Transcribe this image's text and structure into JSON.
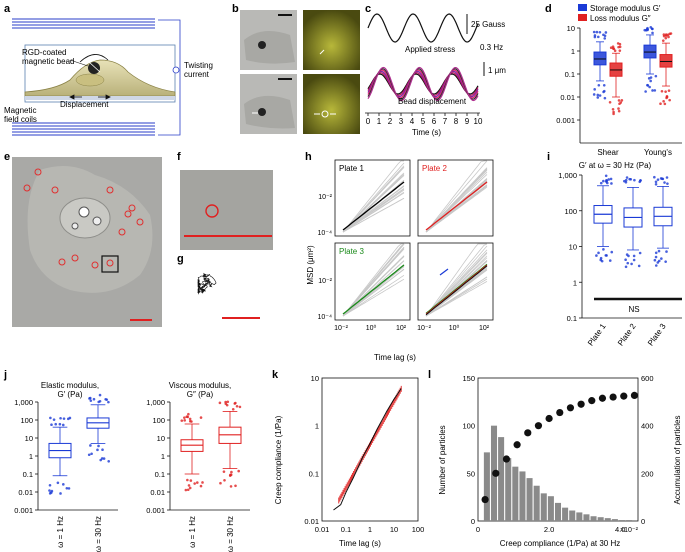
{
  "panel_letters": [
    "a",
    "b",
    "c",
    "d",
    "e",
    "f",
    "g",
    "h",
    "i",
    "j",
    "k",
    "l"
  ],
  "panel_a": {
    "bead_label_1": "RGD-coated",
    "bead_label_2": "magnetic bead",
    "twisting_label_1": "Twisting",
    "twisting_label_2": "current",
    "displacement": "Displacement",
    "coils_label_1": "Magnetic",
    "coils_label_2": "field coils"
  },
  "panel_c": {
    "scale_gauss": "25 Gauss",
    "freq": "0.3 Hz",
    "applied_stress": "Applied stress",
    "scale_um": "1 μm",
    "bead_displacement": "Bead displacement",
    "xlabel": "Time (s)",
    "ticks": [
      "0",
      "1",
      "2",
      "3",
      "4",
      "5",
      "6",
      "7",
      "8",
      "9",
      "10"
    ]
  },
  "panel_e": {
    "colors": {
      "marker": "#e03030"
    }
  },
  "panel_h": {
    "ylabel": "MSD (μm²)",
    "xlabel": "Time lag (s)",
    "subplots": [
      {
        "title": "Plate 1",
        "color": "#000000"
      },
      {
        "title": "Plate 2",
        "color": "#e02020"
      },
      {
        "title": "Plate 3",
        "color": "#1a8a1a"
      },
      {
        "title": "",
        "color": "#6b6b2a"
      }
    ],
    "yticks": [
      "10⁻⁴",
      "10⁻²"
    ],
    "xticks": [
      "10⁻²",
      "10⁰",
      "10²"
    ]
  },
  "chart_data": [
    {
      "id": "d",
      "type": "box",
      "legend": [
        "Storage modulus G′",
        "Loss modulus G″"
      ],
      "categories": [
        "Shear",
        "Young's"
      ],
      "yscale": "log",
      "ylim": [
        0.0001,
        10
      ],
      "yticks": [
        "10",
        "1",
        "0.1",
        "0.01",
        "0.001"
      ],
      "colors": {
        "storage": "#1a3ad6",
        "loss": "#e02020"
      },
      "series": [
        {
          "name": "Storage modulus G′",
          "boxes": [
            {
              "median": 0.45,
              "q1": 0.25,
              "q3": 0.9,
              "wlo": 0.05,
              "whi": 2.5
            },
            {
              "median": 0.9,
              "q1": 0.5,
              "q3": 1.8,
              "wlo": 0.1,
              "whi": 5
            }
          ]
        },
        {
          "name": "Loss modulus G″",
          "boxes": [
            {
              "median": 0.15,
              "q1": 0.08,
              "q3": 0.3,
              "wlo": 0.01,
              "whi": 0.8
            },
            {
              "median": 0.35,
              "q1": 0.2,
              "q3": 0.7,
              "wlo": 0.03,
              "whi": 2.2
            }
          ]
        }
      ]
    },
    {
      "id": "i",
      "type": "box",
      "title": "G′ at ω = 30 Hz (Pa)",
      "categories": [
        "Plate 1",
        "Plate 2",
        "Plate 3"
      ],
      "yscale": "log",
      "ylim": [
        0.1,
        1000
      ],
      "yticks": [
        "1,000",
        "100",
        "10",
        "1",
        "0.1"
      ],
      "annotation": "NS",
      "series": [
        {
          "name": "G′",
          "boxes": [
            {
              "median": 80,
              "q1": 45,
              "q3": 140,
              "wlo": 10,
              "whi": 500
            },
            {
              "median": 65,
              "q1": 35,
              "q3": 120,
              "wlo": 8,
              "whi": 450
            },
            {
              "median": 70,
              "q1": 38,
              "q3": 125,
              "wlo": 9,
              "whi": 480
            }
          ]
        }
      ]
    },
    {
      "id": "j-elastic",
      "type": "box",
      "title_1": "Elastic modulus,",
      "title_2": "G′ (Pa)",
      "categories": [
        "ω = 1 Hz",
        "ω = 30 Hz"
      ],
      "yscale": "log",
      "ylim": [
        0.001,
        1000
      ],
      "yticks": [
        "1,000",
        "100",
        "10",
        "1",
        "0.1",
        "0.01",
        "0.001"
      ],
      "series": [
        {
          "name": "G′",
          "boxes": [
            {
              "median": 2,
              "q1": 0.8,
              "q3": 5,
              "wlo": 0.08,
              "whi": 40
            },
            {
              "median": 70,
              "q1": 35,
              "q3": 130,
              "wlo": 5,
              "whi": 700
            }
          ]
        }
      ]
    },
    {
      "id": "j-viscous",
      "type": "box",
      "title_1": "Viscous modulus,",
      "title_2": "G″ (Pa)",
      "categories": [
        "ω = 1 Hz",
        "ω = 30 Hz"
      ],
      "yscale": "log",
      "ylim": [
        0.001,
        1000
      ],
      "yticks": [
        "1,000",
        "100",
        "10",
        "1",
        "0.1",
        "0.01",
        "0.001"
      ],
      "series": [
        {
          "name": "G″",
          "boxes": [
            {
              "median": 4,
              "q1": 1.8,
              "q3": 8,
              "wlo": 0.1,
              "whi": 60
            },
            {
              "median": 15,
              "q1": 5,
              "q3": 40,
              "wlo": 0.2,
              "whi": 300
            }
          ]
        }
      ]
    },
    {
      "id": "k",
      "type": "line",
      "xlabel": "Time lag (s)",
      "ylabel": "Creep compliance (1/Pa)",
      "xscale": "log",
      "yscale": "log",
      "xlim": [
        0.01,
        100
      ],
      "ylim": [
        0.01,
        10
      ],
      "xticks": [
        "0.01",
        "0.1",
        "1",
        "10",
        "100"
      ],
      "yticks": [
        "10",
        "1",
        "0.1",
        "0.01"
      ],
      "x": [
        0.03,
        0.06,
        0.1,
        0.2,
        0.5,
        1,
        2,
        5,
        10,
        20
      ],
      "y": [
        0.017,
        0.022,
        0.04,
        0.08,
        0.22,
        0.42,
        0.85,
        2.0,
        3.6,
        6.0
      ]
    },
    {
      "id": "l",
      "type": "bar",
      "xlabel": "Creep compliance (1/Pa) at 30 Hz",
      "ylabel": "Number of particles",
      "y2label": "Accumulation of particles",
      "xlim": [
        0,
        0.045
      ],
      "ylim": [
        0,
        150
      ],
      "y2lim": [
        0,
        600
      ],
      "xticks": [
        "0",
        "2.0",
        "4.0"
      ],
      "x_multiplier": "×10⁻²",
      "yticks": [
        "0",
        "50",
        "100",
        "150"
      ],
      "y2ticks": [
        "0",
        "200",
        "400",
        "600"
      ],
      "bin_centers": [
        0.0025,
        0.0045,
        0.0065,
        0.0085,
        0.0105,
        0.0125,
        0.0145,
        0.0165,
        0.0185,
        0.0205,
        0.0225,
        0.0245,
        0.0265,
        0.0285,
        0.0305,
        0.0325,
        0.0345,
        0.0365,
        0.0385,
        0.0405,
        0.0425
      ],
      "counts": [
        72,
        100,
        88,
        66,
        57,
        52,
        45,
        37,
        29,
        26,
        19,
        14,
        11,
        9,
        7,
        5,
        4,
        3,
        2,
        1,
        1
      ],
      "cumulative_x": [
        0.002,
        0.005,
        0.008,
        0.011,
        0.014,
        0.017,
        0.02,
        0.023,
        0.026,
        0.029,
        0.032,
        0.035,
        0.038,
        0.041,
        0.044
      ],
      "cumulative": [
        90,
        200,
        260,
        320,
        370,
        400,
        430,
        455,
        475,
        490,
        505,
        515,
        520,
        524,
        527
      ]
    }
  ]
}
